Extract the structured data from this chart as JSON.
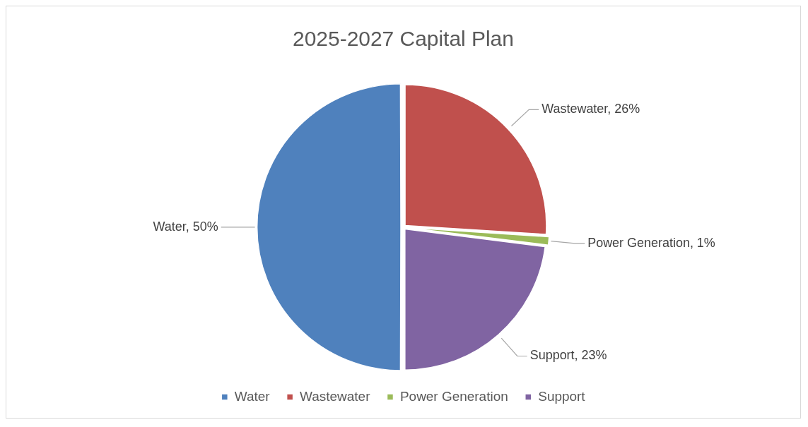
{
  "chart_data": {
    "type": "pie",
    "title": "2025-2027 Capital Plan",
    "categories": [
      "Water",
      "Wastewater",
      "Power Generation",
      "Support"
    ],
    "values": [
      50,
      26,
      1,
      23
    ],
    "colors": [
      "#4f81bd",
      "#c0504d",
      "#9bbb59",
      "#8064a2"
    ],
    "value_labels": [
      "Water, 50%",
      "Wastewater, 26%",
      "Power Generation, 1%",
      "Support, 23%"
    ],
    "legend": "bottom"
  }
}
